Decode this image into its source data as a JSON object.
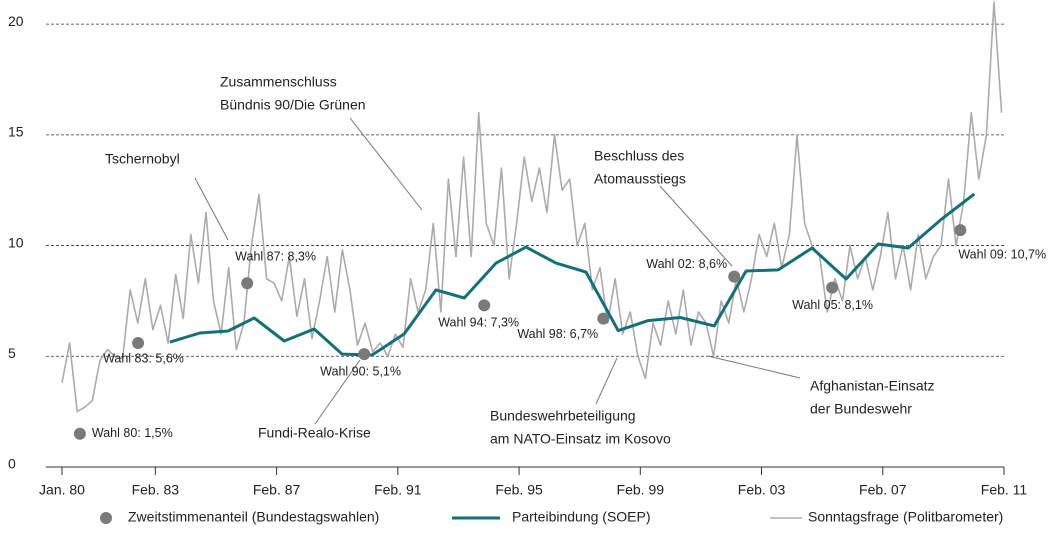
{
  "chart_data": {
    "type": "line",
    "xlim": [
      1980,
      2011.08
    ],
    "xticks": [
      {
        "value": 1980,
        "label": "Jan. 80"
      },
      {
        "value": 1983.08,
        "label": "Feb. 83"
      },
      {
        "value": 1987.08,
        "label": "Feb. 87"
      },
      {
        "value": 1991.08,
        "label": "Feb. 91"
      },
      {
        "value": 1995.08,
        "label": "Feb. 95"
      },
      {
        "value": 1999.08,
        "label": "Feb. 99"
      },
      {
        "value": 2003.08,
        "label": "Feb. 03"
      },
      {
        "value": 2007.08,
        "label": "Feb. 07"
      },
      {
        "value": 2011.08,
        "label": "Feb. 11"
      }
    ],
    "ylim": [
      0,
      21
    ],
    "yticks": [
      0,
      5,
      10,
      15,
      20
    ],
    "grid": true,
    "series": [
      {
        "name": "Zweitstimmenanteil (Bundestagswahlen)",
        "type": "scatter",
        "color": "#7a7a7a",
        "x": [
          1980.59,
          1982.51,
          1986.11,
          1989.97,
          1993.93,
          1997.86,
          2002.18,
          2005.41,
          2009.64
        ],
        "values": [
          1.5,
          5.6,
          8.3,
          5.1,
          7.3,
          6.7,
          8.6,
          8.1,
          10.7
        ],
        "value_labels": [
          "Wahl 80: 1,5%",
          "Wahl 83: 5,6%",
          "Wahl 87: 8,3%",
          "Wahl 90: 5,1%",
          "Wahl 94: 7,3%",
          "Wahl 98: 6,7%",
          "Wahl 02: 8,6%",
          "Wahl 05: 8,1%",
          "Wahl 09: 10,7%"
        ]
      },
      {
        "name": "Parteibindung (SOEP)",
        "type": "line",
        "color": "#12707a",
        "x": [
          1983.56,
          1984.55,
          1985.48,
          1986.34,
          1987.33,
          1988.32,
          1989.24,
          1990.23,
          1991.29,
          1992.34,
          1993.27,
          1994.32,
          1995.31,
          1996.3,
          1997.29,
          1998.35,
          1999.34,
          2000.4,
          2001.52,
          2002.57,
          2003.63,
          2004.75,
          2005.87,
          2006.93,
          2007.92,
          2008.98,
          2010.1
        ],
        "values": [
          5.64,
          6.05,
          6.14,
          6.73,
          5.69,
          6.23,
          5.1,
          5.06,
          6.01,
          8.0,
          7.63,
          9.21,
          9.93,
          9.21,
          8.8,
          6.16,
          6.61,
          6.75,
          6.37,
          8.85,
          8.9,
          9.89,
          8.49,
          10.07,
          9.89,
          11.15,
          12.33
        ]
      },
      {
        "name": "Sonntagsfrage (Politbarometer)",
        "type": "line",
        "color": "#ababab",
        "x": [
          1980,
          1980.25,
          1980.5,
          1980.75,
          1981,
          1981.25,
          1981.5,
          1981.75,
          1982,
          1982.25,
          1982.5,
          1982.75,
          1983,
          1983.25,
          1983.5,
          1983.75,
          1984,
          1984.25,
          1984.5,
          1984.75,
          1985,
          1985.25,
          1985.5,
          1985.75,
          1986,
          1986.25,
          1986.5,
          1986.75,
          1987,
          1987.25,
          1987.5,
          1987.75,
          1988,
          1988.25,
          1988.5,
          1988.75,
          1989,
          1989.25,
          1989.5,
          1989.75,
          1990,
          1990.25,
          1990.5,
          1990.75,
          1991,
          1991.25,
          1991.5,
          1991.75,
          1992,
          1992.25,
          1992.5,
          1992.75,
          1993,
          1993.25,
          1993.5,
          1993.75,
          1994,
          1994.25,
          1994.5,
          1994.75,
          1995,
          1995.25,
          1995.5,
          1995.75,
          1996,
          1996.25,
          1996.5,
          1996.75,
          1997,
          1997.25,
          1997.5,
          1997.75,
          1998,
          1998.25,
          1998.5,
          1998.75,
          1999,
          1999.25,
          1999.5,
          1999.75,
          2000,
          2000.25,
          2000.5,
          2000.75,
          2001,
          2001.25,
          2001.5,
          2001.75,
          2002,
          2002.25,
          2002.5,
          2002.75,
          2003,
          2003.25,
          2003.5,
          2003.75,
          2004,
          2004.25,
          2004.5,
          2004.75,
          2005,
          2005.25,
          2005.5,
          2005.75,
          2006,
          2006.25,
          2006.5,
          2006.75,
          2007,
          2007.25,
          2007.5,
          2007.75,
          2008,
          2008.25,
          2008.5,
          2008.75,
          2009,
          2009.25,
          2009.5,
          2009.75,
          2010,
          2010.25,
          2010.5,
          2010.75,
          2011
        ],
        "values": [
          3.8,
          5.6,
          2.5,
          2.7,
          3.0,
          4.8,
          5.3,
          5.0,
          4.9,
          8.0,
          6.5,
          8.5,
          6.2,
          7.3,
          5.6,
          8.7,
          6.7,
          10.5,
          8.3,
          11.5,
          7.5,
          6.0,
          9.0,
          5.3,
          6.5,
          10.0,
          12.3,
          8.5,
          8.3,
          7.5,
          9.5,
          6.8,
          8.5,
          5.8,
          7.5,
          9.5,
          7.0,
          9.8,
          8.0,
          5.5,
          6.5,
          5.2,
          5.6,
          5.0,
          6.0,
          5.4,
          8.5,
          7.0,
          8.0,
          11.0,
          7.0,
          13.0,
          9.5,
          14.0,
          9.5,
          16.0,
          11.0,
          10.0,
          13.5,
          8.5,
          11.0,
          14.0,
          12.0,
          13.5,
          11.5,
          15.0,
          12.5,
          13.0,
          10.0,
          11.0,
          8.0,
          9.0,
          6.5,
          8.5,
          6.0,
          7.0,
          5.0,
          4.0,
          6.5,
          5.5,
          7.5,
          6.0,
          8.0,
          5.5,
          7.0,
          6.5,
          5.0,
          7.5,
          6.5,
          8.5,
          7.0,
          8.5,
          10.5,
          9.5,
          11.0,
          9.0,
          10.5,
          15.0,
          11.0,
          10.0,
          9.5,
          7.0,
          8.5,
          7.5,
          10.0,
          8.5,
          9.5,
          8.0,
          9.5,
          11.5,
          8.5,
          10.0,
          8.0,
          10.5,
          8.5,
          9.5,
          10.0,
          13.0,
          10.0,
          12.0,
          16.0,
          13.0,
          15.0,
          21.0,
          16.0
        ]
      }
    ],
    "annotations": [
      [
        "Tschernobyl"
      ],
      [
        "Zusammenschluss",
        "Bündnis 90/Die Grünen"
      ],
      [
        "Beschluss des",
        "Atomausstiegs"
      ],
      [
        "Fundi-Realo-Krise"
      ],
      [
        "Bundeswehrbeteiligung",
        "am NATO-Einsatz im Kosovo"
      ],
      [
        "Afghanistan-Einsatz",
        "der Bundeswehr"
      ]
    ]
  }
}
